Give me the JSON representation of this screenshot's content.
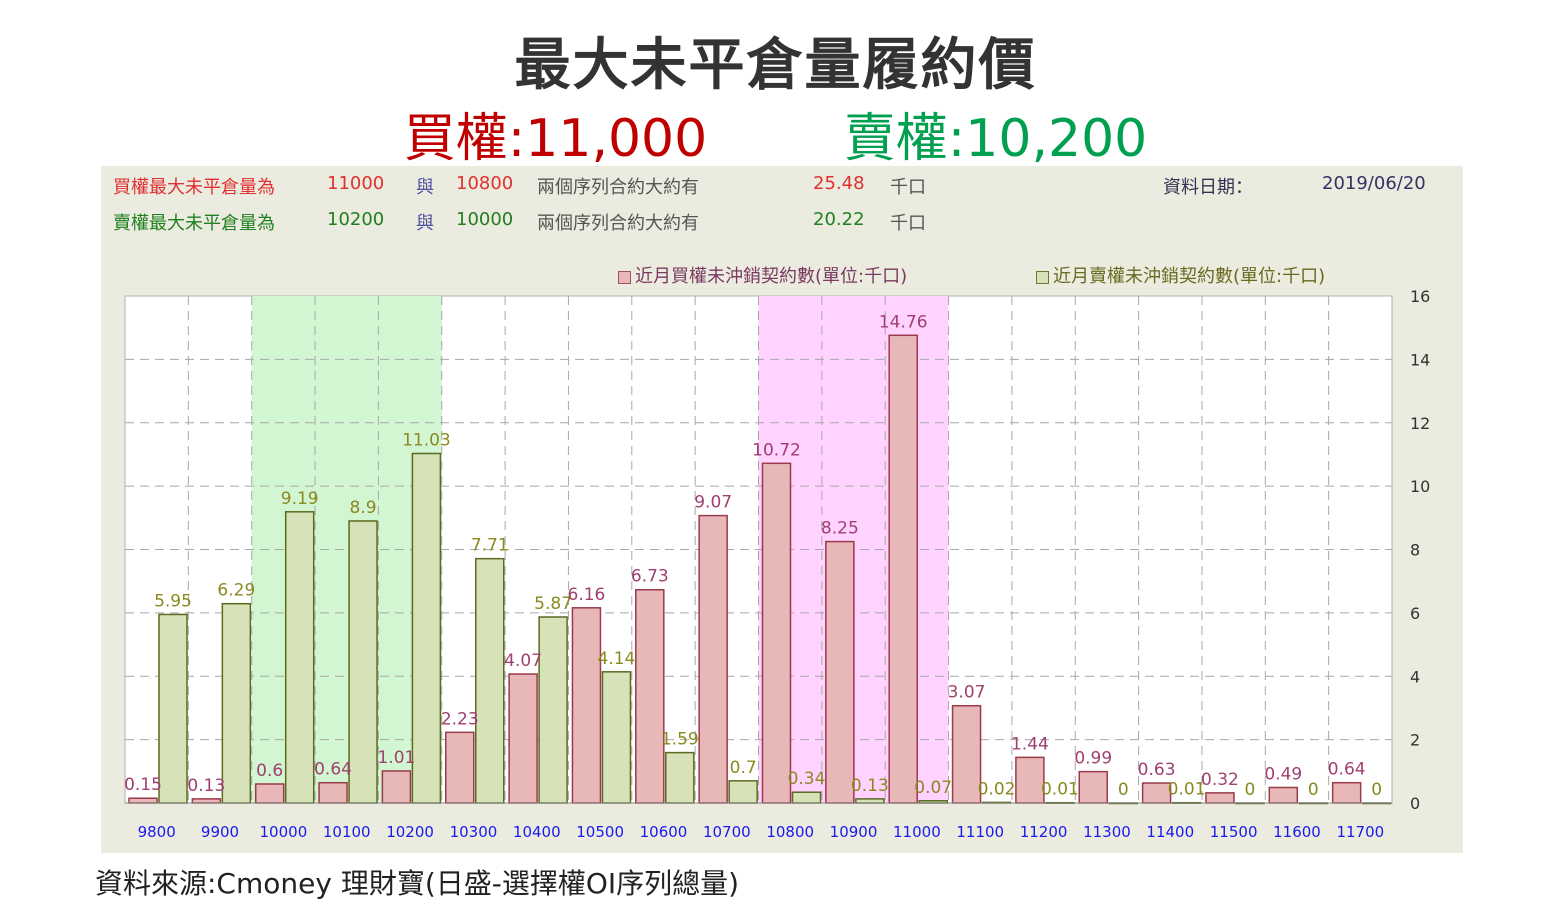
{
  "title": "最大未平倉量履約價",
  "subtitle": {
    "call": "買權:11,000",
    "put": "賣權:10,200"
  },
  "info": {
    "call_row": {
      "label": "買權最大未平倉量為",
      "strike1": "11000",
      "and": "與",
      "strike2": "10800",
      "desc": "兩個序列合約大約有",
      "amount": "25.48",
      "unit": "千口"
    },
    "put_row": {
      "label": "賣權最大未平倉量為",
      "strike1": "10200",
      "and": "與",
      "strike2": "10000",
      "desc": "兩個序列合約大約有",
      "amount": "20.22",
      "unit": "千口"
    },
    "date_label": "資料日期：",
    "date_value": "2019/06/20"
  },
  "footer": "資料來源:Cmoney 理財寶(日盛-選擇權OI序列總量)",
  "colors": {
    "call_fill": "#e8b8b8",
    "call_stroke": "#9a3a4a",
    "put_fill": "#d8e2b8",
    "put_stroke": "#5a6a20",
    "call_label": "#a04070",
    "put_label": "#8a8a20",
    "green_band": "#d2f5d2",
    "pink_band": "#ffd2ff",
    "xtick": "#1a1aee"
  },
  "chart_data": {
    "type": "bar",
    "categories": [
      "9800",
      "9900",
      "10000",
      "10100",
      "10200",
      "10300",
      "10400",
      "10500",
      "10600",
      "10700",
      "10800",
      "10900",
      "11000",
      "11100",
      "11200",
      "11300",
      "11400",
      "11500",
      "11600",
      "11700"
    ],
    "series": [
      {
        "name": "近月買權未沖銷契約數(單位:千口)",
        "values": [
          0.15,
          0.13,
          0.6,
          0.64,
          1.01,
          2.23,
          4.07,
          6.16,
          6.73,
          9.07,
          10.72,
          8.25,
          14.76,
          3.07,
          1.44,
          0.99,
          0.63,
          0.32,
          0.49,
          0.64
        ],
        "labels": [
          "0.15",
          "0.13",
          "0.6",
          "0.64",
          "1.01",
          "2.23",
          "4.07",
          "6.16",
          "6.73",
          "9.07",
          "10.72",
          "8.25",
          "14.76",
          "3.07",
          "1.44",
          "0.99",
          "0.63",
          "0.32",
          "0.49",
          "0.64"
        ]
      },
      {
        "name": "近月賣權未沖銷契約數(單位:千口)",
        "values": [
          5.95,
          6.29,
          9.19,
          8.9,
          11.03,
          7.71,
          5.87,
          4.14,
          1.59,
          0.7,
          0.34,
          0.13,
          0.07,
          0.02,
          0.01,
          0,
          0.01,
          0,
          0,
          0
        ],
        "labels": [
          "5.95",
          "6.29",
          "9.19",
          "8.9",
          "11.03",
          "7.71",
          "5.87",
          "4.14",
          "1.59",
          "0.7",
          "0.34",
          "0.13",
          "0.07",
          "0.02",
          "0.01",
          "0",
          "0.01",
          "0",
          "0",
          "0"
        ]
      }
    ],
    "yticks": [
      "0",
      "2",
      "4",
      "6",
      "8",
      "10",
      "12",
      "14",
      "16"
    ],
    "ylim": [
      0,
      16
    ],
    "grid": true,
    "y_axis_side": "right",
    "highlight_bands": [
      {
        "from": "10000",
        "to": "10200",
        "color": "green"
      },
      {
        "from": "10800",
        "to": "11000",
        "color": "pink"
      }
    ],
    "legend_position": "top-right"
  }
}
